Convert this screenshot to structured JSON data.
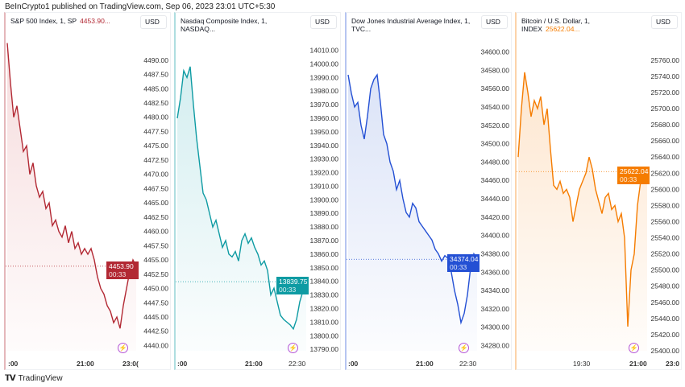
{
  "publisher_line": "BeInCrypto1 published on TradingView.com, Sep 06, 2023 23:01 UTC+5:30",
  "footer": {
    "brand": "TradingView",
    "logo_text": "TV"
  },
  "panels": [
    {
      "title": "S&P 500 Index, 1, SP",
      "price_header": "4453.90...",
      "currency": "USD",
      "color": "#b22833",
      "fill_color": "#f6dcdd",
      "last_price": "4453.90",
      "countdown": "00:33",
      "last_value": 4453.9,
      "ylim": [
        4439.08,
        4494.34
      ],
      "y_ticks": [
        "4490.00",
        "4487.50",
        "4485.00",
        "4482.50",
        "4480.00",
        "4477.50",
        "4475.00",
        "4472.50",
        "4470.00",
        "4467.50",
        "4465.00",
        "4462.50",
        "4460.00",
        "4457.50",
        "4455.00",
        "4452.50",
        "4450.00",
        "4447.50",
        "4445.00",
        "4442.50",
        "4440.00"
      ],
      "x_ticks": [
        {
          "label": ":00",
          "bold": true
        },
        {
          "label": "21:00",
          "bold": true
        },
        {
          "label": "23:0(",
          "bold": true
        }
      ],
      "values": [
        4493,
        4486,
        4480,
        4482,
        4478,
        4474,
        4475,
        4470,
        4472,
        4468,
        4466,
        4467,
        4464,
        4465,
        4461,
        4462,
        4460,
        4459,
        4461,
        4458,
        4460,
        4457,
        4458,
        4456,
        4457,
        4456,
        4457,
        4455,
        4452,
        4450,
        4449,
        4447,
        4446,
        4444,
        4445,
        4443,
        4447,
        4450,
        4453,
        4455,
        4453.9
      ]
    },
    {
      "title": "Nasdaq Composite Index, 1, NASDAQ...",
      "price_header": "",
      "currency": "USD",
      "color": "#0e9ba3",
      "fill_color": "#d4eef0",
      "last_price": "13839.75",
      "countdown": "00:33",
      "last_value": 13839.75,
      "ylim": [
        13788.9,
        14021
      ],
      "y_ticks": [
        "14010.00",
        "14000.00",
        "13990.00",
        "13980.00",
        "13970.00",
        "13960.00",
        "13950.00",
        "13940.00",
        "13930.00",
        "13920.00",
        "13910.00",
        "13900.00",
        "13890.00",
        "13880.00",
        "13870.00",
        "13860.00",
        "13850.00",
        "13840.00",
        "13830.00",
        "13820.00",
        "13810.00",
        "13800.00",
        "13790.00"
      ],
      "x_ticks": [
        {
          "label": ":00",
          "bold": true
        },
        {
          "label": "21:00",
          "bold": true
        },
        {
          "label": "22:30",
          "bold": false
        }
      ],
      "values": [
        13960,
        13975,
        13995,
        13990,
        13998,
        13970,
        13945,
        13925,
        13905,
        13900,
        13890,
        13880,
        13885,
        13875,
        13865,
        13870,
        13860,
        13858,
        13862,
        13855,
        13870,
        13875,
        13868,
        13872,
        13865,
        13860,
        13852,
        13855,
        13848,
        13830,
        13835,
        13825,
        13815,
        13812,
        13810,
        13808,
        13805,
        13812,
        13825,
        13833,
        13839.75
      ]
    },
    {
      "title": "Dow Jones Industrial Average Index, 1, TVC...",
      "price_header": "",
      "currency": "USD",
      "color": "#2450d4",
      "fill_color": "#dbe3f7",
      "last_price": "34374.04",
      "countdown": "00:33",
      "last_value": 34374.04,
      "ylim": [
        34274.3,
        34618
      ],
      "y_ticks": [
        "34600.00",
        "34580.00",
        "34560.00",
        "34540.00",
        "34520.00",
        "34500.00",
        "34480.00",
        "34460.00",
        "34440.00",
        "34420.00",
        "34400.00",
        "34380.00",
        "34360.00",
        "34340.00",
        "34320.00",
        "34300.00",
        "34280.00"
      ],
      "x_ticks": [
        {
          "label": ":00",
          "bold": true
        },
        {
          "label": "21:00",
          "bold": true
        },
        {
          "label": "22:30",
          "bold": false
        }
      ],
      "values": [
        34575,
        34555,
        34540,
        34545,
        34520,
        34505,
        34530,
        34560,
        34570,
        34575,
        34545,
        34510,
        34500,
        34480,
        34470,
        34450,
        34460,
        34440,
        34425,
        34420,
        34435,
        34430,
        34415,
        34410,
        34405,
        34400,
        34395,
        34385,
        34380,
        34372,
        34378,
        34375,
        34360,
        34340,
        34325,
        34305,
        34315,
        34335,
        34365,
        34380,
        34374.04
      ]
    },
    {
      "title": "Bitcoin / U.S. Dollar, 1, INDEX",
      "price_header": "25622.04...",
      "currency": "USD",
      "color": "#f57c00",
      "fill_color": "#fde6cf",
      "last_price": "25622.04",
      "countdown": "00:33",
      "last_value": 25622.04,
      "ylim": [
        25400,
        25790.7
      ],
      "y_ticks": [
        "25760.00",
        "25740.00",
        "25720.00",
        "25700.00",
        "25680.00",
        "25660.00",
        "25640.00",
        "25620.00",
        "25600.00",
        "25580.00",
        "25560.00",
        "25540.00",
        "25520.00",
        "25500.00",
        "25480.00",
        "25460.00",
        "25440.00",
        "25420.00",
        "25400.00"
      ],
      "x_ticks": [
        {
          "label": "19:30",
          "bold": false
        },
        {
          "label": "21:00",
          "bold": true
        },
        {
          "label": "23:0",
          "bold": true
        }
      ],
      "values": [
        25640,
        25700,
        25745,
        25720,
        25690,
        25710,
        25700,
        25715,
        25680,
        25700,
        25650,
        25605,
        25600,
        25610,
        25595,
        25600,
        25590,
        25560,
        25580,
        25600,
        25610,
        25620,
        25640,
        25625,
        25600,
        25585,
        25570,
        25590,
        25595,
        25575,
        25580,
        25560,
        25570,
        25540,
        25430,
        25500,
        25520,
        25580,
        25610,
        25615,
        25622.04
      ]
    }
  ]
}
